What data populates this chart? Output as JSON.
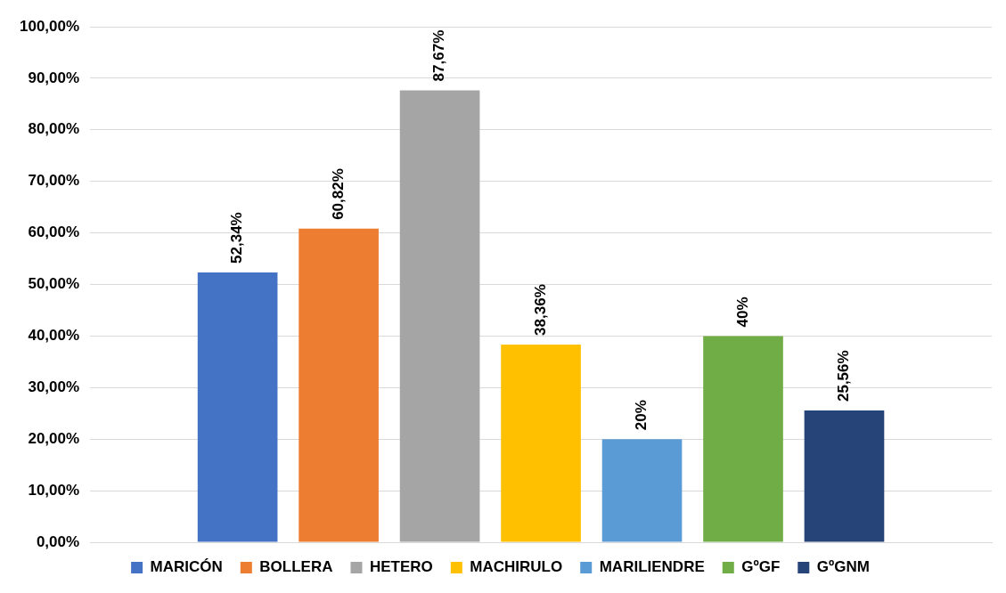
{
  "chart_data": {
    "type": "bar",
    "categories": [
      null
    ],
    "series": [
      {
        "name": "MARICÓN",
        "color": "#4472c4",
        "values": [
          52.34
        ],
        "value_labels": [
          "52,34%"
        ]
      },
      {
        "name": "BOLLERA",
        "color": "#ed7d31",
        "values": [
          60.82
        ],
        "value_labels": [
          "60,82%"
        ]
      },
      {
        "name": "HETERO",
        "color": "#a5a5a5",
        "values": [
          87.67
        ],
        "value_labels": [
          "87,67%"
        ]
      },
      {
        "name": "MACHIRULO",
        "color": "#ffc000",
        "values": [
          38.36
        ],
        "value_labels": [
          "38,36%"
        ]
      },
      {
        "name": "MARILIENDRE",
        "color": "#5b9bd5",
        "values": [
          20
        ],
        "value_labels": [
          "20%"
        ]
      },
      {
        "name": "GºGF",
        "color": "#70ad47",
        "values": [
          40
        ],
        "value_labels": [
          "40%"
        ]
      },
      {
        "name": "GºGNM",
        "color": "#264478",
        "values": [
          25.56
        ],
        "value_labels": [
          "25,56%"
        ]
      }
    ],
    "ylim": [
      0,
      100
    ],
    "yticks": [
      {
        "value": 0,
        "label": "0,00%"
      },
      {
        "value": 10,
        "label": "10,00%"
      },
      {
        "value": 20,
        "label": "20,00%"
      },
      {
        "value": 30,
        "label": "30,00%"
      },
      {
        "value": 40,
        "label": "40,00%"
      },
      {
        "value": 50,
        "label": "50,00%"
      },
      {
        "value": 60,
        "label": "60,00%"
      },
      {
        "value": 70,
        "label": "70,00%"
      },
      {
        "value": 80,
        "label": "80,00%"
      },
      {
        "value": 90,
        "label": "90,00%"
      },
      {
        "value": 100,
        "label": "100,00%"
      }
    ],
    "grid": "y",
    "legend": "bottom",
    "tick_labels": "y"
  }
}
